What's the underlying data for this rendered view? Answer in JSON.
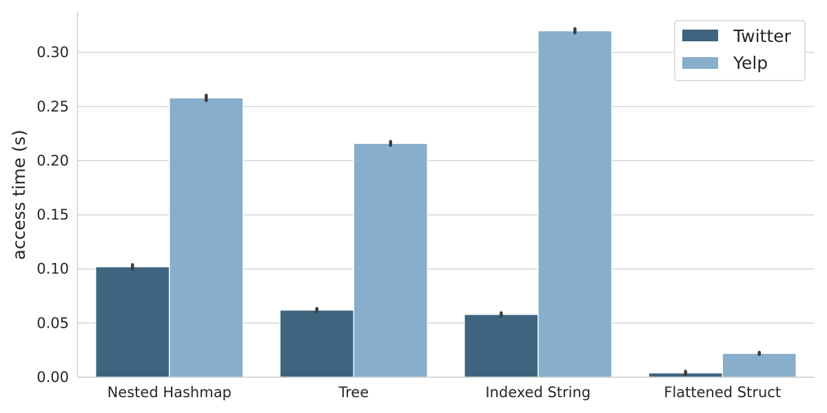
{
  "chart_data": {
    "type": "bar",
    "title": "",
    "xlabel": "",
    "ylabel": "access time (s)",
    "categories": [
      "Nested Hashmap",
      "Tree",
      "Indexed String",
      "Flattened Struct"
    ],
    "series": [
      {
        "name": "Twitter",
        "values": [
          0.102,
          0.062,
          0.058,
          0.004
        ],
        "error": [
          0.001,
          0.0005,
          0.0005,
          0.0005
        ],
        "color": "#3e6480"
      },
      {
        "name": "Yelp",
        "values": [
          0.258,
          0.216,
          0.32,
          0.022
        ],
        "error": [
          0.0015,
          0.0008,
          0.001,
          0.0
        ],
        "color": "#87aecb"
      }
    ],
    "ylim": [
      0,
      0.337
    ],
    "yticks": [
      "0.00",
      "0.05",
      "0.10",
      "0.15",
      "0.20",
      "0.25",
      "0.30"
    ],
    "ytick_values": [
      0,
      0.05,
      0.1,
      0.15,
      0.2,
      0.25,
      0.3
    ],
    "grid": "horizontal",
    "legend_position": "top-right"
  }
}
